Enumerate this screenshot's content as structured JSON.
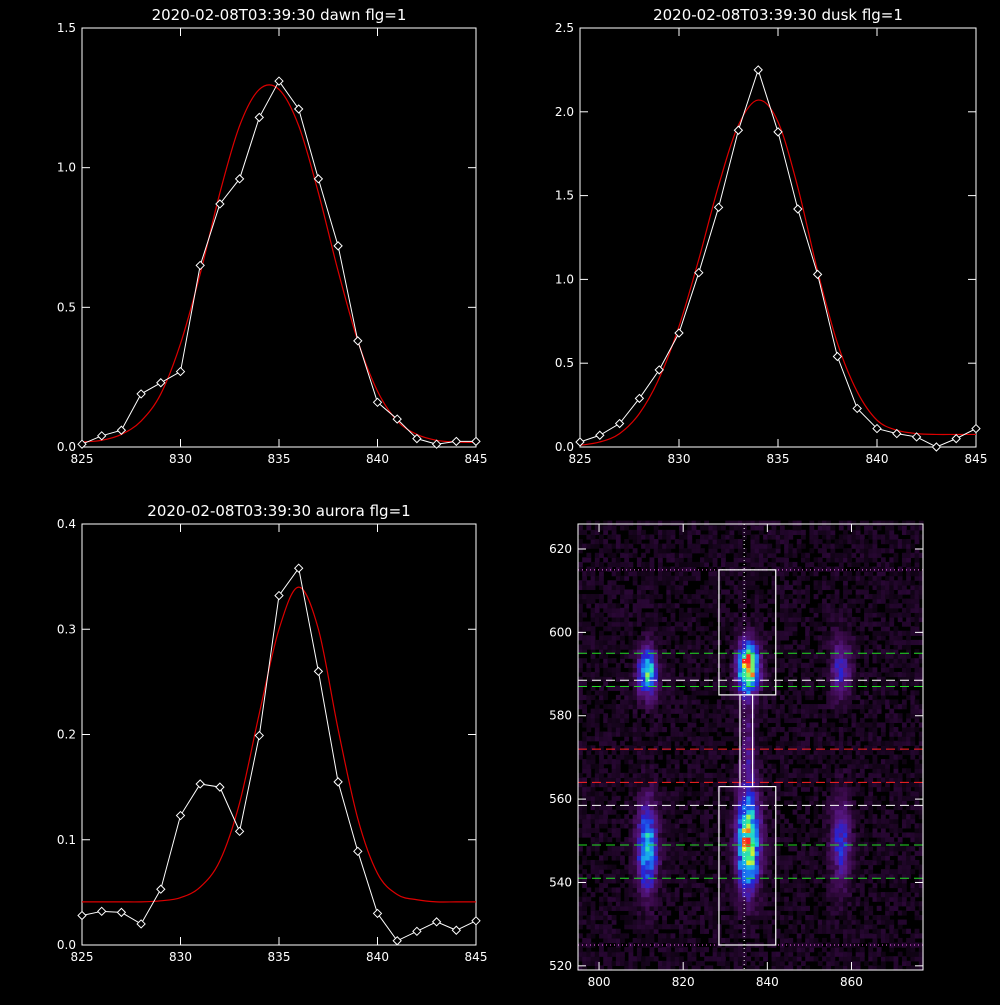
{
  "chart_data": [
    {
      "type": "line",
      "title": "2020-02-08T03:39:30 dawn flg=1",
      "xlim": [
        825,
        845
      ],
      "ylim": [
        0,
        1.5
      ],
      "xticks": [
        "825",
        "830",
        "835",
        "840",
        "845"
      ],
      "yticks": [
        "0.0",
        "0.5",
        "1.0",
        "1.5"
      ],
      "xtick_values": [
        825,
        830,
        835,
        840,
        845
      ],
      "ytick_values": [
        0,
        0.5,
        1.0,
        1.5
      ],
      "grid": false,
      "colors": {
        "data": "#ffffff",
        "fit": "#dd0000"
      },
      "series": [
        {
          "role": "data",
          "x": [
            825,
            826,
            827,
            828,
            829,
            830,
            831,
            832,
            833,
            834,
            835,
            836,
            837,
            838,
            839,
            840,
            841,
            842,
            843,
            844,
            845
          ],
          "y": [
            0.01,
            0.04,
            0.06,
            0.19,
            0.23,
            0.27,
            0.65,
            0.87,
            0.96,
            1.18,
            1.31,
            1.21,
            0.96,
            0.72,
            0.38,
            0.16,
            0.1,
            0.03,
            0.01,
            0.02,
            0.02
          ]
        },
        {
          "role": "fit",
          "x": [
            825,
            826,
            827,
            828,
            829,
            830,
            831,
            832,
            833,
            834,
            835,
            836,
            837,
            838,
            839,
            840,
            841,
            842,
            843,
            844,
            845
          ],
          "y": [
            0.018,
            0.024,
            0.045,
            0.093,
            0.19,
            0.37,
            0.62,
            0.91,
            1.15,
            1.28,
            1.28,
            1.15,
            0.91,
            0.63,
            0.38,
            0.2,
            0.093,
            0.045,
            0.024,
            0.018,
            0.016
          ]
        }
      ]
    },
    {
      "type": "line",
      "title": "2020-02-08T03:39:30 dusk flg=1",
      "xlim": [
        825,
        845
      ],
      "ylim": [
        0,
        2.5
      ],
      "xticks": [
        "825",
        "830",
        "835",
        "840",
        "845"
      ],
      "yticks": [
        "0.0",
        "0.5",
        "1.0",
        "1.5",
        "2.0",
        "2.5"
      ],
      "xtick_values": [
        825,
        830,
        835,
        840,
        845
      ],
      "ytick_values": [
        0,
        0.5,
        1.0,
        1.5,
        2.0,
        2.5
      ],
      "grid": false,
      "colors": {
        "data": "#ffffff",
        "fit": "#dd0000"
      },
      "series": [
        {
          "role": "data",
          "x": [
            825,
            826,
            827,
            828,
            829,
            830,
            831,
            832,
            833,
            834,
            835,
            836,
            837,
            838,
            839,
            840,
            841,
            842,
            843,
            844,
            845
          ],
          "y": [
            0.03,
            0.07,
            0.14,
            0.29,
            0.46,
            0.68,
            1.04,
            1.43,
            1.89,
            2.25,
            1.88,
            1.42,
            1.03,
            0.54,
            0.23,
            0.11,
            0.08,
            0.06,
            0.0,
            0.05,
            0.11
          ]
        },
        {
          "role": "fit",
          "x": [
            825,
            826,
            827,
            828,
            829,
            830,
            831,
            832,
            833,
            834,
            835,
            836,
            837,
            838,
            839,
            840,
            841,
            842,
            843,
            844,
            845
          ],
          "y": [
            0.01,
            0.03,
            0.08,
            0.2,
            0.41,
            0.72,
            1.12,
            1.56,
            1.92,
            2.07,
            1.94,
            1.55,
            1.05,
            0.62,
            0.33,
            0.16,
            0.1,
            0.08,
            0.075,
            0.075,
            0.075
          ]
        }
      ]
    },
    {
      "type": "line",
      "title": "2020-02-08T03:39:30 aurora flg=1",
      "xlim": [
        825,
        845
      ],
      "ylim": [
        0,
        0.4
      ],
      "xticks": [
        "825",
        "830",
        "835",
        "840",
        "845"
      ],
      "yticks": [
        "0.0",
        "0.1",
        "0.2",
        "0.3",
        "0.4"
      ],
      "xtick_values": [
        825,
        830,
        835,
        840,
        845
      ],
      "ytick_values": [
        0,
        0.1,
        0.2,
        0.3,
        0.4
      ],
      "grid": false,
      "colors": {
        "data": "#ffffff",
        "fit": "#dd0000"
      },
      "series": [
        {
          "role": "data",
          "x": [
            825,
            826,
            827,
            828,
            829,
            830,
            831,
            832,
            833,
            834,
            835,
            836,
            837,
            838,
            839,
            840,
            841,
            842,
            843,
            844,
            845
          ],
          "y": [
            0.028,
            0.032,
            0.031,
            0.02,
            0.053,
            0.123,
            0.153,
            0.15,
            0.108,
            0.199,
            0.332,
            0.358,
            0.26,
            0.155,
            0.089,
            0.03,
            0.004,
            0.013,
            0.022,
            0.014,
            0.023
          ]
        },
        {
          "role": "fit",
          "x": [
            825,
            826,
            827,
            828,
            829,
            830,
            831,
            832,
            833,
            834,
            835,
            836,
            837,
            838,
            839,
            840,
            841,
            842,
            843,
            844,
            845
          ],
          "y": [
            0.041,
            0.041,
            0.041,
            0.041,
            0.042,
            0.045,
            0.055,
            0.08,
            0.135,
            0.22,
            0.3,
            0.34,
            0.3,
            0.205,
            0.12,
            0.068,
            0.048,
            0.043,
            0.041,
            0.041,
            0.041
          ]
        }
      ]
    },
    {
      "type": "heatmap",
      "title": "",
      "xlim": [
        795,
        877
      ],
      "ylim": [
        519,
        626
      ],
      "xticks": [
        "800",
        "820",
        "840",
        "860"
      ],
      "yticks": [
        "520",
        "540",
        "560",
        "580",
        "600",
        "620"
      ],
      "xtick_values": [
        800,
        820,
        840,
        860
      ],
      "ytick_values": [
        520,
        540,
        560,
        580,
        600,
        620
      ],
      "colormap": [
        "#000000",
        "#3a0a4a",
        "#5a188c",
        "#2424d8",
        "#1a7cf2",
        "#19c8e6",
        "#3cf08c",
        "#e8f028",
        "#ff2020"
      ],
      "blobs": [
        {
          "x": 811,
          "y": 590,
          "sx": 1.6,
          "sy": 4.0,
          "amp": 0.62
        },
        {
          "x": 811,
          "y": 548,
          "sx": 1.6,
          "sy": 7.0,
          "amp": 0.58
        },
        {
          "x": 835,
          "y": 591,
          "sx": 1.7,
          "sy": 4.0,
          "amp": 1.0
        },
        {
          "x": 835,
          "y": 549,
          "sx": 1.8,
          "sy": 7.5,
          "amp": 0.88
        },
        {
          "x": 835,
          "y": 571,
          "sx": 1.2,
          "sy": 9.0,
          "amp": 0.18
        },
        {
          "x": 857,
          "y": 591,
          "sx": 1.6,
          "sy": 5.0,
          "amp": 0.3
        },
        {
          "x": 857,
          "y": 549,
          "sx": 1.6,
          "sy": 7.0,
          "amp": 0.32
        }
      ],
      "boxes": [
        {
          "x0": 828.5,
          "x1": 842,
          "y0": 585,
          "y1": 615
        },
        {
          "x0": 828.5,
          "x1": 842,
          "y0": 525,
          "y1": 563
        },
        {
          "x0": 833.5,
          "x1": 836.5,
          "y0": 563,
          "y1": 585
        }
      ],
      "vertical_line_x": 834.5,
      "hlines": [
        {
          "y": 615,
          "color": "#ff66ff",
          "style": "dotted"
        },
        {
          "y": 595,
          "color": "#22dd22",
          "style": "dashed"
        },
        {
          "y": 588.5,
          "color": "#ffffff",
          "style": "dashed"
        },
        {
          "y": 587,
          "color": "#22dd22",
          "style": "dashed"
        },
        {
          "y": 572,
          "color": "#ff2222",
          "style": "dashed"
        },
        {
          "y": 564,
          "color": "#ff2222",
          "style": "dashed"
        },
        {
          "y": 558.5,
          "color": "#ffffff",
          "style": "dashed"
        },
        {
          "y": 549,
          "color": "#22dd22",
          "style": "dashed"
        },
        {
          "y": 541,
          "color": "#22dd22",
          "style": "dashed"
        },
        {
          "y": 525,
          "color": "#ff66ff",
          "style": "dotted"
        }
      ]
    }
  ]
}
